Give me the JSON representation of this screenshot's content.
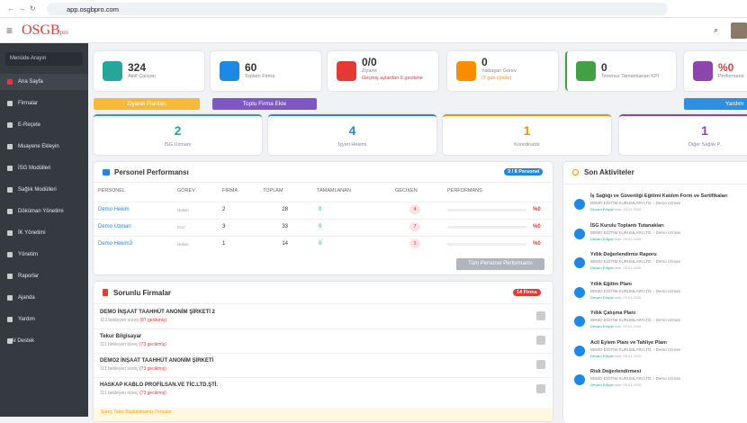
{
  "browser": {
    "url": "app.osgbpro.com"
  },
  "header": {
    "logo": "OSGB",
    "logo_suffix": "pro"
  },
  "sidebar": {
    "search": "Menüde Arayın",
    "items": [
      "Ana Sayfa",
      "Firmalar",
      "E-Reçete",
      "Muayene Ekleyin",
      "İSG Modülleri",
      "Sağlık Modülleri",
      "Döküman Yönetimi",
      "İK Yönetimi",
      "Yönetim",
      "Raporlar",
      "Ajanda",
      "Yardım",
      "AI Destek"
    ]
  },
  "stats": [
    {
      "value": 324,
      "label": "Aktif Çalışan"
    },
    {
      "value": 60,
      "label": "Toplam Firma"
    },
    {
      "value": "0/0",
      "label": "Ziyaret",
      "note": "Geçmiş aylardan 6 gecikme"
    },
    {
      "value": 0,
      "label": "Yaklaşan Görev",
      "note": "(7 gün içinde)"
    },
    {
      "value": 0,
      "label": "Temmuz Tamamlanan KPI"
    },
    {
      "value": "%0",
      "label": "Performans"
    }
  ],
  "buttons": {
    "visits": "Ziyaret Planları",
    "bulk_add": "Toplu Firma Ekle",
    "help": "Yardım"
  },
  "roles": [
    {
      "value": 2,
      "label": "İSG Uzmanı"
    },
    {
      "value": 4,
      "label": "İşyeri Hekimi"
    },
    {
      "value": 1,
      "label": "Koordinatör"
    },
    {
      "value": 1,
      "label": "Diğer Sağlık P."
    }
  ],
  "performance": {
    "title": "Personel Performansı",
    "badge": "3 / 8 Personel",
    "columns": [
      "PERSONEL",
      "GÖREV",
      "FİRMA",
      "TOPLAM",
      "TAMAMLANAN",
      "GECİKEN",
      "PERFORMANS"
    ],
    "rows": [
      [
        "Demo Hekim",
        "Hekim",
        2,
        28,
        0,
        4,
        "%0"
      ],
      [
        "Demo Uzman",
        "İGU",
        3,
        33,
        0,
        7,
        "%0"
      ],
      [
        "Demo Hekim3",
        "Hekim",
        1,
        14,
        0,
        3,
        "%0"
      ]
    ],
    "button": "Tüm Personel Performansı"
  },
  "problem_firms": {
    "title": "Sorunlu Firmalar",
    "badge": "14 Firma",
    "items": [
      {
        "name": "DEMO İNŞAAT TAAHHÜT ANONİM ŞİRKETİ 2",
        "pending": "113 bekleyen süreç",
        "late": "(87 gecikmiş)"
      },
      {
        "name": "Tekur Bilgisayar",
        "pending": "111 bekleyen süreç",
        "late": "(73 gecikmiş)"
      },
      {
        "name": "DEMO2 İNŞAAT TAAHHÜT ANONİM ŞİRKETİ",
        "pending": "111 bekleyen süreç",
        "late": "(73 gecikmiş)"
      },
      {
        "name": "HASKAP KABLO PROFİLSAN.VE TİC.LTD.ŞTİ.",
        "pending": "111 bekleyen süreç",
        "late": "(73 gecikmiş)"
      }
    ],
    "footer": "Süreç Takip Başlatılmamış Firmalar"
  },
  "activities": {
    "title": "Son Aktiviteler",
    "items": [
      {
        "title": "İş Sağlığı ve Güvenliği Eğitimi Katılım Form ve Sertifikaları",
        "sub": "DEMO EĞİTİM KURUMLARI LTD. - Demo Uzman",
        "status": "Devam Ediyor",
        "due": "| Vade: 29.01.2026"
      },
      {
        "title": "İSG Kurulu Toplantı Tutanakları",
        "sub": "DEMO EĞİTİM KURUMLARI LTD. - Demo Uzman",
        "status": "Devam Ediyor",
        "due": "| Vade: 29.01.2026"
      },
      {
        "title": "Yıllık Değerlendirme Raporu",
        "sub": "DEMO EĞİTİM KURUMLARI LTD. - Demo Uzman",
        "status": "Devam Ediyor",
        "due": "| Vade: 29.01.2026"
      },
      {
        "title": "Yıllık Eğitim Planı",
        "sub": "DEMO EĞİTİM KURUMLARI LTD. - Demo Uzman",
        "status": "Devam Ediyor",
        "due": "| Vade: 29.01.2026"
      },
      {
        "title": "Yıllık Çalışma Planı",
        "sub": "DEMO EĞİTİM KURUMLARI LTD. - Demo Uzman",
        "status": "Devam Ediyor",
        "due": "| Vade: 29.01.2026"
      },
      {
        "title": "Acil Eylem Planı ve Tahliye Planı",
        "sub": "DEMO EĞİTİM KURUMLARI LTD. - Demo Uzman",
        "status": "Devam Ediyor",
        "due": "| Vade: 29.01.2026"
      },
      {
        "title": "Risk Değerlendirmesi",
        "sub": "DEMO EĞİTİM KURUMLARI LTD. - Demo Uzman",
        "status": "Devam Ediyor",
        "due": "| Vade: 29.01.2026"
      }
    ]
  }
}
